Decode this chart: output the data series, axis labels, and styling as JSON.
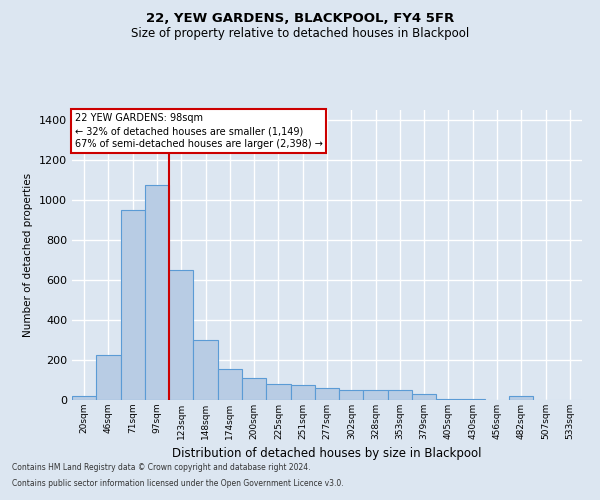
{
  "title1": "22, YEW GARDENS, BLACKPOOL, FY4 5FR",
  "title2": "Size of property relative to detached houses in Blackpool",
  "xlabel": "Distribution of detached houses by size in Blackpool",
  "ylabel": "Number of detached properties",
  "categories": [
    "20sqm",
    "46sqm",
    "71sqm",
    "97sqm",
    "123sqm",
    "148sqm",
    "174sqm",
    "200sqm",
    "225sqm",
    "251sqm",
    "277sqm",
    "302sqm",
    "328sqm",
    "353sqm",
    "379sqm",
    "405sqm",
    "430sqm",
    "456sqm",
    "482sqm",
    "507sqm",
    "533sqm"
  ],
  "values": [
    18,
    225,
    950,
    1075,
    650,
    300,
    155,
    110,
    80,
    75,
    60,
    50,
    50,
    50,
    28,
    5,
    3,
    2,
    18,
    2,
    2
  ],
  "bar_color": "#b8cce4",
  "bar_edge_color": "#5b9bd5",
  "bar_edge_width": 0.8,
  "vline_x": 3.5,
  "vline_color": "#cc0000",
  "ylim": [
    0,
    1450
  ],
  "yticks": [
    0,
    200,
    400,
    600,
    800,
    1000,
    1200,
    1400
  ],
  "annotation_text": "22 YEW GARDENS: 98sqm\n← 32% of detached houses are smaller (1,149)\n67% of semi-detached houses are larger (2,398) →",
  "annotation_box_color": "#ffffff",
  "annotation_box_edge": "#cc0000",
  "footer1": "Contains HM Land Registry data © Crown copyright and database right 2024.",
  "footer2": "Contains public sector information licensed under the Open Government Licence v3.0.",
  "bg_color": "#dce6f1",
  "plot_bg_color": "#dce6f1",
  "grid_color": "#ffffff"
}
